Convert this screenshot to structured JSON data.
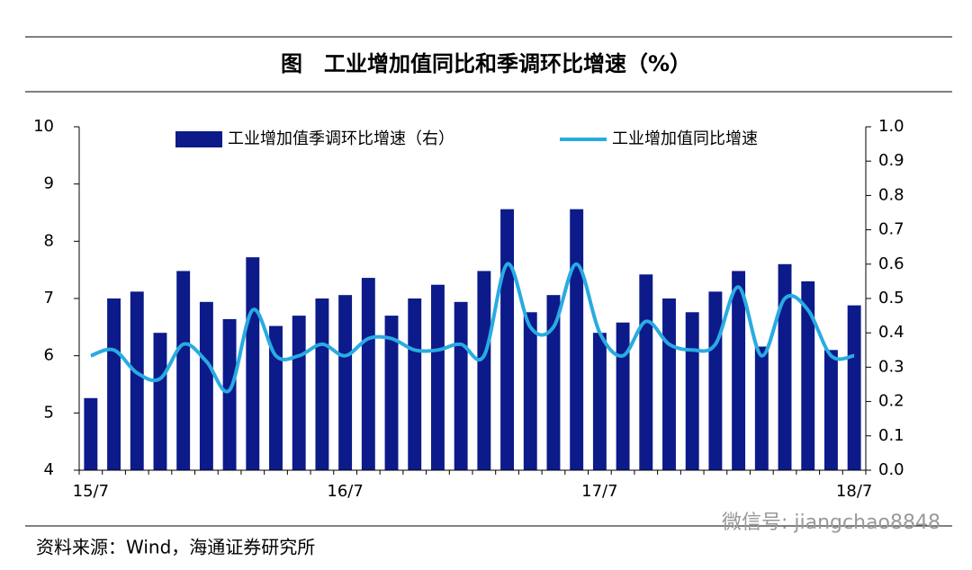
{
  "chart_data": {
    "type": "bar_line",
    "title": "图　工业增加值同比和季调环比增速（%）",
    "source": "资料来源：Wind，海通证券研究所",
    "watermark": "微信号: jiangchao8848",
    "categories": [
      "15/7",
      null,
      null,
      null,
      null,
      null,
      null,
      null,
      null,
      null,
      null,
      "16/7",
      null,
      null,
      null,
      null,
      null,
      null,
      null,
      null,
      null,
      null,
      "17/7",
      null,
      null,
      null,
      null,
      null,
      null,
      null,
      null,
      null,
      null,
      "18/7"
    ],
    "series": [
      {
        "name": "工业增加值季调环比增速（右）",
        "color": "#0c1a8a",
        "axis": "y2",
        "kind": "bar",
        "values": [
          0.21,
          0.5,
          0.52,
          0.4,
          0.58,
          0.49,
          0.44,
          0.62,
          0.42,
          0.45,
          0.5,
          0.51,
          0.56,
          0.45,
          0.5,
          0.54,
          0.49,
          0.58,
          0.76,
          0.46,
          0.51,
          0.76,
          0.4,
          0.43,
          0.57,
          0.5,
          0.46,
          0.52,
          0.58,
          0.36,
          0.6,
          0.55,
          0.35,
          0.48
        ]
      },
      {
        "name": "工业增加值同比增速",
        "color": "#29abe2",
        "kind": "line",
        "values": [
          6.0,
          6.1,
          5.7,
          5.6,
          6.2,
          5.9,
          5.4,
          6.8,
          6.0,
          6.0,
          6.2,
          6.0,
          6.3,
          6.3,
          6.1,
          6.1,
          6.2,
          6.0,
          7.6,
          6.5,
          6.5,
          7.6,
          6.4,
          6.0,
          6.6,
          6.2,
          6.1,
          6.2,
          7.2,
          6.0,
          7.0,
          6.8,
          6.0,
          6.0
        ]
      }
    ],
    "ylim": [
      4,
      10
    ],
    "yticks": [
      4,
      5,
      6,
      7,
      8,
      9,
      10
    ],
    "y2lim": [
      0,
      1
    ],
    "y2ticks": [
      {
        "value": 0,
        "label": "0.0"
      },
      0.1,
      0.2,
      0.3,
      0.4,
      0.5,
      0.6,
      0.7,
      0.8,
      0.9,
      {
        "value": 1,
        "label": "1.0"
      }
    ],
    "legend": "top"
  }
}
